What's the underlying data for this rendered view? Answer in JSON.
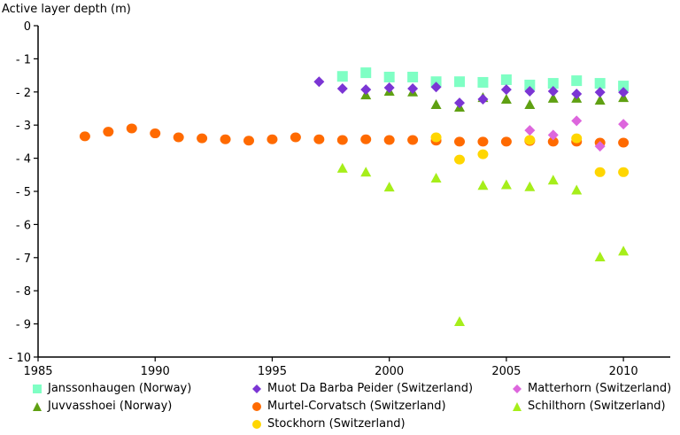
{
  "chart_data": {
    "type": "scatter",
    "title": "",
    "ylabel": "Active layer depth (m)",
    "xlabel": "",
    "xlim": [
      1985,
      2012
    ],
    "ylim": [
      -10,
      0
    ],
    "xticks": [
      1985,
      1990,
      1995,
      2000,
      2005,
      2010
    ],
    "xtick_labels": [
      "1985",
      "1990",
      "1995",
      "2000",
      "2005",
      "2010"
    ],
    "yticks": [
      0,
      -1,
      -2,
      -3,
      -4,
      -5,
      -6,
      -7,
      -8,
      -9,
      -10
    ],
    "ytick_labels": [
      "0",
      "- 1",
      "- 2",
      "- 3",
      "- 4",
      "- 5",
      "- 6",
      "- 7",
      "- 8",
      "- 9",
      "- 10"
    ],
    "grid": false,
    "legend_position": "bottom",
    "series": [
      {
        "name": "Janssonhaugen (Norway)",
        "marker": "square",
        "color": "#7FFFC4",
        "x": [
          1998,
          1999,
          2000,
          2001,
          2002,
          2003,
          2004,
          2005,
          2006,
          2007,
          2008,
          2009,
          2010
        ],
        "y": [
          -1.53,
          -1.42,
          -1.55,
          -1.55,
          -1.69,
          -1.69,
          -1.71,
          -1.63,
          -1.79,
          -1.74,
          -1.66,
          -1.74,
          -1.82
        ]
      },
      {
        "name": "Muot Da Barba Peider (Switzerland)",
        "marker": "diamond",
        "color": "#7B35D4",
        "x": [
          1997,
          1998,
          1999,
          2000,
          2001,
          2002,
          2003,
          2004,
          2005,
          2006,
          2007,
          2008,
          2009,
          2010
        ],
        "y": [
          -1.69,
          -1.9,
          -1.93,
          -1.87,
          -1.9,
          -1.85,
          -2.33,
          -2.22,
          -1.93,
          -1.98,
          -1.98,
          -2.06,
          -2.01,
          -2.01
        ]
      },
      {
        "name": "Matterhorn (Switzerland)",
        "marker": "diamond",
        "color": "#DD66DD",
        "x": [
          2006,
          2007,
          2008,
          2009,
          2010
        ],
        "y": [
          -3.16,
          -3.3,
          -2.87,
          -3.64,
          -2.97
        ]
      },
      {
        "name": "Juvvasshoei (Norway)",
        "marker": "triangle",
        "color": "#5FA012",
        "x": [
          1999,
          2000,
          2001,
          2002,
          2003,
          2004,
          2005,
          2006,
          2007,
          2008,
          2009,
          2010
        ],
        "y": [
          -2.09,
          -1.98,
          -2.0,
          -2.38,
          -2.46,
          -2.17,
          -2.22,
          -2.38,
          -2.19,
          -2.19,
          -2.25,
          -2.17
        ]
      },
      {
        "name": "Murtel-Corvatsch (Switzerland)",
        "marker": "circle",
        "color": "#FF6A00",
        "x": [
          1987,
          1988,
          1989,
          1990,
          1991,
          1992,
          1993,
          1994,
          1995,
          1996,
          1997,
          1998,
          1999,
          2000,
          2001,
          2002,
          2003,
          2004,
          2005,
          2006,
          2007,
          2008,
          2009,
          2010
        ],
        "y": [
          -3.34,
          -3.2,
          -3.1,
          -3.25,
          -3.37,
          -3.4,
          -3.43,
          -3.47,
          -3.43,
          -3.37,
          -3.43,
          -3.45,
          -3.43,
          -3.45,
          -3.45,
          -3.47,
          -3.5,
          -3.5,
          -3.5,
          -3.48,
          -3.5,
          -3.5,
          -3.53,
          -3.53
        ]
      },
      {
        "name": "Schilthorn (Switzerland)",
        "marker": "triangle",
        "color": "#A6EE1A",
        "x": [
          1998,
          1999,
          2000,
          2002,
          2003,
          2004,
          2005,
          2006,
          2007,
          2008,
          2009,
          2010
        ],
        "y": [
          -4.3,
          -4.42,
          -4.87,
          -4.6,
          -8.93,
          -4.82,
          -4.8,
          -4.86,
          -4.66,
          -4.96,
          -6.98,
          -6.8
        ]
      },
      {
        "name": "Stockhorn (Switzerland)",
        "marker": "circle",
        "color": "#FFD600",
        "x": [
          2002,
          2003,
          2004,
          2006,
          2008,
          2009,
          2010
        ],
        "y": [
          -3.37,
          -4.04,
          -3.88,
          -3.45,
          -3.4,
          -4.42,
          -4.42
        ]
      }
    ]
  }
}
